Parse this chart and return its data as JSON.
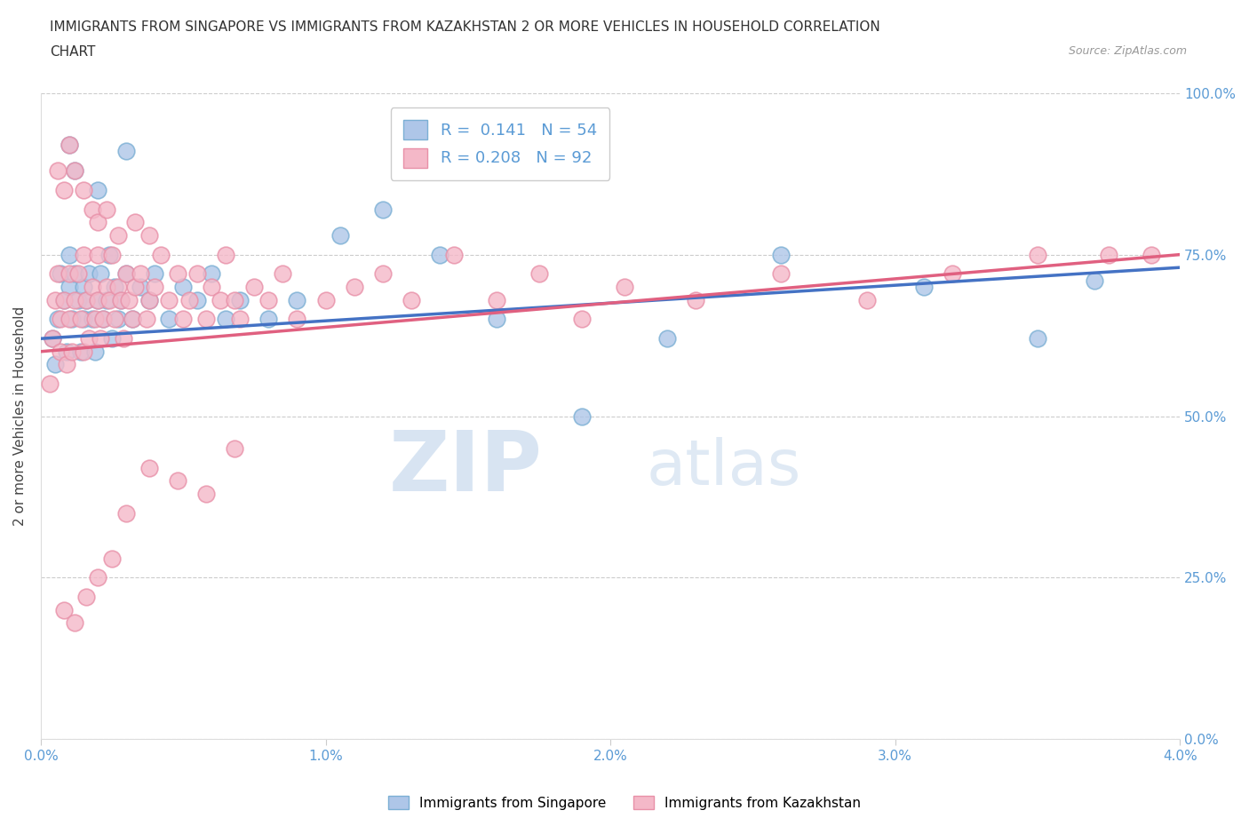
{
  "title_line1": "IMMIGRANTS FROM SINGAPORE VS IMMIGRANTS FROM KAZAKHSTAN 2 OR MORE VEHICLES IN HOUSEHOLD CORRELATION",
  "title_line2": "CHART",
  "source": "Source: ZipAtlas.com",
  "ylabel": "2 or more Vehicles in Household",
  "xlim": [
    0.0,
    4.0
  ],
  "ylim": [
    0.0,
    100.0
  ],
  "xticks": [
    0.0,
    1.0,
    2.0,
    3.0,
    4.0
  ],
  "xtick_labels": [
    "0.0%",
    "1.0%",
    "2.0%",
    "3.0%",
    "4.0%"
  ],
  "yticks": [
    0.0,
    25.0,
    50.0,
    75.0,
    100.0
  ],
  "ytick_labels": [
    "0.0%",
    "25.0%",
    "50.0%",
    "75.0%",
    "100.0%"
  ],
  "singapore_color": "#aec6e8",
  "singapore_edge": "#7bafd4",
  "kazakhstan_color": "#f4b8c8",
  "kazakhstan_edge": "#e890a8",
  "trend_singapore_color": "#4472c4",
  "trend_kazakhstan_color": "#e06080",
  "R_singapore": 0.141,
  "N_singapore": 54,
  "R_kazakhstan": 0.208,
  "N_kazakhstan": 92,
  "legend_label_singapore": "Immigrants from Singapore",
  "legend_label_kazakhstan": "Immigrants from Kazakhstan",
  "watermark_zip": "ZIP",
  "watermark_atlas": "atlas",
  "watermark_color": "#c5d8ee",
  "sg_x": [
    0.04,
    0.05,
    0.06,
    0.07,
    0.08,
    0.09,
    0.1,
    0.1,
    0.11,
    0.12,
    0.13,
    0.14,
    0.15,
    0.15,
    0.16,
    0.17,
    0.18,
    0.19,
    0.2,
    0.21,
    0.22,
    0.23,
    0.24,
    0.25,
    0.26,
    0.27,
    0.28,
    0.3,
    0.32,
    0.35,
    0.38,
    0.4,
    0.45,
    0.5,
    0.55,
    0.6,
    0.65,
    0.7,
    0.8,
    0.9,
    1.05,
    1.2,
    1.4,
    1.6,
    1.9,
    2.2,
    2.6,
    3.1,
    3.5,
    3.7,
    0.1,
    0.12,
    0.2,
    0.3
  ],
  "sg_y": [
    62,
    58,
    65,
    72,
    68,
    60,
    75,
    70,
    65,
    72,
    68,
    60,
    65,
    70,
    68,
    72,
    65,
    60,
    68,
    72,
    65,
    68,
    75,
    62,
    70,
    65,
    68,
    72,
    65,
    70,
    68,
    72,
    65,
    70,
    68,
    72,
    65,
    68,
    65,
    68,
    78,
    82,
    75,
    65,
    50,
    62,
    75,
    70,
    62,
    71,
    92,
    88,
    85,
    91
  ],
  "kz_x": [
    0.03,
    0.04,
    0.05,
    0.06,
    0.07,
    0.07,
    0.08,
    0.09,
    0.1,
    0.1,
    0.11,
    0.12,
    0.13,
    0.14,
    0.15,
    0.15,
    0.16,
    0.17,
    0.18,
    0.19,
    0.2,
    0.2,
    0.21,
    0.22,
    0.23,
    0.24,
    0.25,
    0.26,
    0.27,
    0.28,
    0.29,
    0.3,
    0.31,
    0.32,
    0.33,
    0.35,
    0.37,
    0.38,
    0.4,
    0.42,
    0.45,
    0.48,
    0.5,
    0.52,
    0.55,
    0.58,
    0.6,
    0.63,
    0.65,
    0.68,
    0.7,
    0.75,
    0.8,
    0.85,
    0.9,
    1.0,
    1.1,
    1.2,
    1.3,
    1.45,
    1.6,
    1.75,
    1.9,
    2.05,
    2.3,
    2.6,
    2.9,
    3.2,
    3.5,
    3.75,
    3.9,
    0.06,
    0.08,
    0.1,
    0.12,
    0.15,
    0.18,
    0.2,
    0.23,
    0.27,
    0.33,
    0.38,
    0.08,
    0.12,
    0.16,
    0.2,
    0.25,
    0.3,
    0.38,
    0.48,
    0.58,
    0.68
  ],
  "kz_y": [
    55,
    62,
    68,
    72,
    65,
    60,
    68,
    58,
    72,
    65,
    60,
    68,
    72,
    65,
    60,
    75,
    68,
    62,
    70,
    65,
    68,
    75,
    62,
    65,
    70,
    68,
    75,
    65,
    70,
    68,
    62,
    72,
    68,
    65,
    70,
    72,
    65,
    68,
    70,
    75,
    68,
    72,
    65,
    68,
    72,
    65,
    70,
    68,
    75,
    68,
    65,
    70,
    68,
    72,
    65,
    68,
    70,
    72,
    68,
    75,
    68,
    72,
    65,
    70,
    68,
    72,
    68,
    72,
    75,
    75,
    75,
    88,
    85,
    92,
    88,
    85,
    82,
    80,
    82,
    78,
    80,
    78,
    20,
    18,
    22,
    25,
    28,
    35,
    42,
    40,
    38,
    45
  ]
}
